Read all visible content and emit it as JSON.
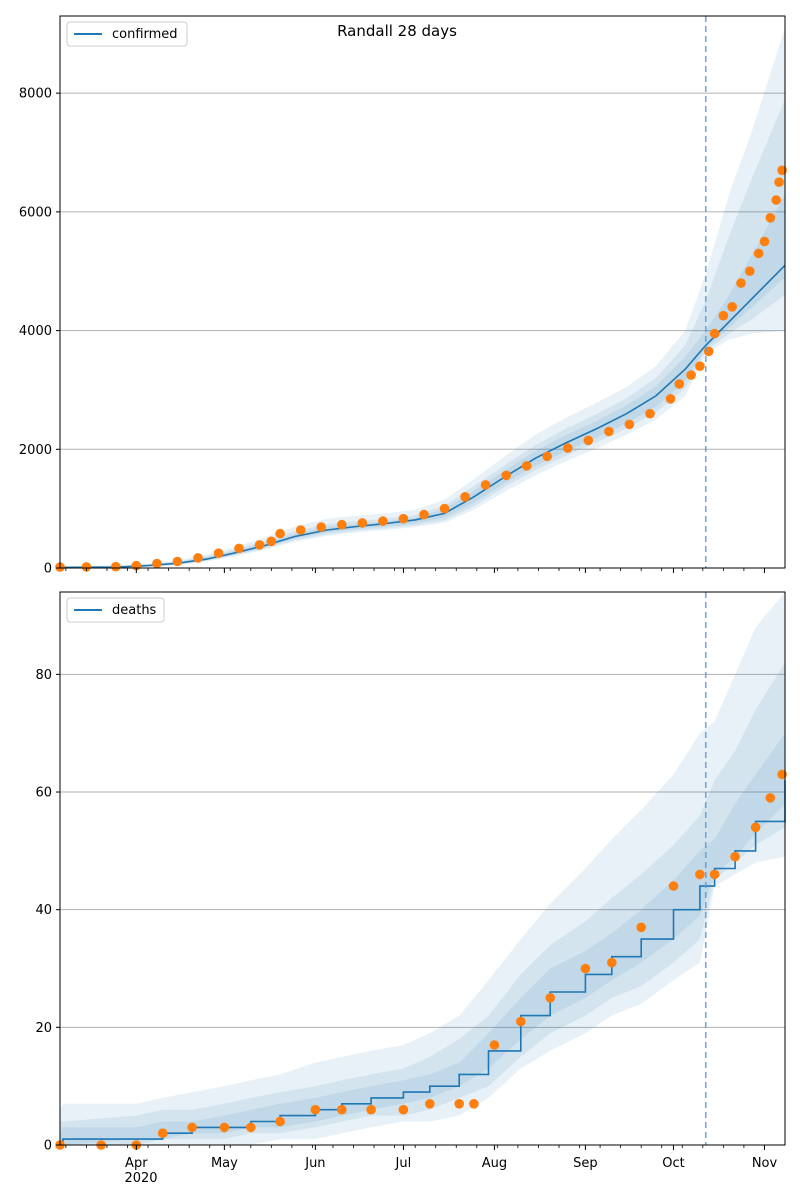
{
  "figure": {
    "title": "Randall 28 days",
    "date_labels": [
      "Apr",
      "May",
      "Jun",
      "Jul",
      "Aug",
      "Sep",
      "Oct",
      "Nov"
    ],
    "year_label": "2020",
    "x_range": [
      "2020-03-06",
      "2020-11-08"
    ],
    "forecast_start": "2020-10-12"
  },
  "colors": {
    "model_line": "#1f77b4",
    "band": "#1f77b4",
    "observed": "#ff7f0e",
    "forecast_line": "#5b9bd5",
    "grid": "#b0b0b0"
  },
  "chart_data": [
    {
      "type": "line",
      "legend": "confirmed",
      "legend_position": "top-left",
      "ylim": [
        0,
        9300
      ],
      "yticks": [
        0,
        2000,
        4000,
        6000,
        8000
      ],
      "grid": true,
      "model": {
        "x": [
          "2020-03-06",
          "2020-03-25",
          "2020-04-05",
          "2020-04-15",
          "2020-04-25",
          "2020-05-05",
          "2020-05-15",
          "2020-05-25",
          "2020-06-05",
          "2020-06-15",
          "2020-06-25",
          "2020-07-05",
          "2020-07-15",
          "2020-07-25",
          "2020-08-05",
          "2020-08-15",
          "2020-08-25",
          "2020-09-05",
          "2020-09-15",
          "2020-09-25",
          "2020-10-05",
          "2020-10-12",
          "2020-10-20",
          "2020-10-28",
          "2020-11-08"
        ],
        "y": [
          10,
          15,
          40,
          80,
          150,
          260,
          380,
          530,
          640,
          700,
          750,
          810,
          920,
          1200,
          1550,
          1850,
          2100,
          2350,
          2600,
          2900,
          3350,
          3750,
          4150,
          4550,
          5100
        ]
      },
      "bands": [
        {
          "lower": [
            0,
            0,
            20,
            50,
            110,
            200,
            310,
            440,
            540,
            600,
            640,
            690,
            760,
            980,
            1300,
            1560,
            1790,
            2020,
            2250,
            2500,
            2900,
            3600,
            3850,
            3950,
            4000
          ],
          "upper": [
            30,
            40,
            70,
            130,
            220,
            360,
            520,
            700,
            830,
            880,
            920,
            980,
            1150,
            1500,
            1900,
            2250,
            2520,
            2790,
            3050,
            3400,
            4000,
            4950,
            6300,
            7400,
            9100
          ]
        },
        {
          "lower": [
            0,
            0,
            25,
            58,
            120,
            220,
            330,
            470,
            570,
            630,
            670,
            720,
            800,
            1040,
            1380,
            1650,
            1880,
            2120,
            2350,
            2620,
            3030,
            3650,
            3950,
            4200,
            4600
          ],
          "upper": [
            22,
            30,
            60,
            110,
            200,
            320,
            460,
            620,
            740,
            790,
            830,
            890,
            1050,
            1380,
            1750,
            2070,
            2340,
            2600,
            2860,
            3200,
            3750,
            4500,
            5600,
            6600,
            7900
          ]
        },
        {
          "lower": [
            0,
            5,
            30,
            65,
            130,
            235,
            350,
            495,
            600,
            660,
            700,
            755,
            850,
            1100,
            1440,
            1720,
            1960,
            2200,
            2440,
            2720,
            3150,
            3700,
            4050,
            4400,
            4900
          ],
          "upper": [
            18,
            25,
            52,
            98,
            180,
            295,
            420,
            575,
            690,
            745,
            785,
            845,
            990,
            1300,
            1660,
            1970,
            2230,
            2480,
            2740,
            3060,
            3560,
            4000,
            4600,
            5300,
            6300
          ]
        }
      ],
      "observed": {
        "x": [
          "2020-03-06",
          "2020-03-15",
          "2020-03-25",
          "2020-04-01",
          "2020-04-08",
          "2020-04-15",
          "2020-04-22",
          "2020-04-29",
          "2020-05-06",
          "2020-05-13",
          "2020-05-17",
          "2020-05-20",
          "2020-05-27",
          "2020-06-03",
          "2020-06-10",
          "2020-06-17",
          "2020-06-24",
          "2020-07-01",
          "2020-07-08",
          "2020-07-15",
          "2020-07-22",
          "2020-07-29",
          "2020-08-05",
          "2020-08-12",
          "2020-08-19",
          "2020-08-26",
          "2020-09-02",
          "2020-09-09",
          "2020-09-16",
          "2020-09-23",
          "2020-09-30",
          "2020-10-03",
          "2020-10-07",
          "2020-10-10",
          "2020-10-13",
          "2020-10-15",
          "2020-10-18",
          "2020-10-21",
          "2020-10-24",
          "2020-10-27",
          "2020-10-30",
          "2020-11-01",
          "2020-11-03",
          "2020-11-05",
          "2020-11-06",
          "2020-11-07"
        ],
        "y": [
          15,
          18,
          22,
          40,
          75,
          110,
          170,
          250,
          330,
          390,
          450,
          580,
          640,
          690,
          730,
          760,
          790,
          830,
          900,
          1000,
          1200,
          1400,
          1560,
          1720,
          1880,
          2020,
          2150,
          2300,
          2420,
          2600,
          2850,
          3100,
          3250,
          3400,
          3650,
          3950,
          4250,
          4400,
          4800,
          5000,
          5300,
          5500,
          5900,
          6200,
          6500,
          6700
        ]
      }
    },
    {
      "type": "line",
      "legend": "deaths",
      "legend_position": "top-left",
      "ylim": [
        0,
        94
      ],
      "yticks": [
        0,
        20,
        40,
        60,
        80
      ],
      "grid": true,
      "model": {
        "x": [
          "2020-03-06",
          "2020-03-07",
          "2020-04-01",
          "2020-04-10",
          "2020-04-20",
          "2020-05-01",
          "2020-05-10",
          "2020-05-20",
          "2020-06-01",
          "2020-06-10",
          "2020-06-20",
          "2020-07-01",
          "2020-07-10",
          "2020-07-20",
          "2020-07-30",
          "2020-08-10",
          "2020-08-20",
          "2020-09-01",
          "2020-09-10",
          "2020-09-20",
          "2020-10-01",
          "2020-10-10",
          "2020-10-15",
          "2020-10-22",
          "2020-10-29",
          "2020-11-08"
        ],
        "y": [
          0,
          1,
          1,
          2,
          3,
          3,
          4,
          5,
          6,
          7,
          8,
          9,
          10,
          12,
          16,
          22,
          26,
          29,
          32,
          35,
          40,
          44,
          47,
          50,
          55,
          62
        ]
      },
      "bands": [
        {
          "lower": [
            0,
            0,
            0,
            0,
            0,
            0,
            0,
            1,
            1,
            2,
            3,
            4,
            4,
            5,
            8,
            13,
            16,
            19,
            22,
            24,
            28,
            31,
            44,
            46,
            48,
            49
          ],
          "upper": [
            6,
            7,
            7,
            8,
            9,
            10,
            11,
            12,
            14,
            15,
            16,
            17,
            19,
            22,
            28,
            35,
            41,
            47,
            52,
            57,
            63,
            70,
            72,
            80,
            88,
            94
          ]
        },
        {
          "lower": [
            0,
            0,
            0,
            1,
            1,
            1,
            2,
            2,
            3,
            4,
            5,
            5,
            6,
            8,
            10,
            15,
            19,
            22,
            25,
            27,
            31,
            35,
            45,
            48,
            51,
            54
          ],
          "upper": [
            4,
            4,
            5,
            6,
            6,
            7,
            8,
            9,
            10,
            11,
            12,
            13,
            15,
            18,
            22,
            29,
            34,
            38,
            42,
            46,
            51,
            56,
            62,
            67,
            74,
            82
          ]
        },
        {
          "lower": [
            0,
            0,
            1,
            1,
            2,
            2,
            3,
            3,
            4,
            5,
            6,
            7,
            8,
            10,
            13,
            18,
            22,
            25,
            28,
            31,
            35,
            39,
            46,
            49,
            53,
            58
          ],
          "upper": [
            2,
            3,
            3,
            4,
            4,
            5,
            6,
            7,
            8,
            9,
            10,
            11,
            12,
            14,
            19,
            25,
            30,
            33,
            36,
            40,
            45,
            50,
            52,
            58,
            63,
            70
          ]
        }
      ],
      "observed": {
        "x": [
          "2020-03-06",
          "2020-03-20",
          "2020-04-01",
          "2020-04-10",
          "2020-04-20",
          "2020-05-01",
          "2020-05-10",
          "2020-05-20",
          "2020-06-01",
          "2020-06-10",
          "2020-06-20",
          "2020-07-01",
          "2020-07-10",
          "2020-07-20",
          "2020-07-25",
          "2020-08-01",
          "2020-08-10",
          "2020-08-20",
          "2020-09-01",
          "2020-09-10",
          "2020-09-20",
          "2020-10-01",
          "2020-10-10",
          "2020-10-15",
          "2020-10-22",
          "2020-10-29",
          "2020-11-03",
          "2020-11-07"
        ],
        "y": [
          0,
          0,
          0,
          2,
          3,
          3,
          3,
          4,
          6,
          6,
          6,
          6,
          7,
          7,
          7,
          17,
          21,
          25,
          30,
          31,
          37,
          44,
          46,
          46,
          49,
          54,
          59,
          63
        ]
      }
    }
  ]
}
